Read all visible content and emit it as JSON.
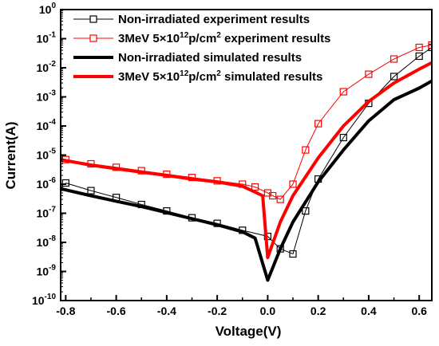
{
  "chart_data": {
    "type": "line",
    "xlabel": "Voltage(V)",
    "ylabel": "Current(A)",
    "xlim": [
      -0.82,
      0.65
    ],
    "ylim_log10": [
      -10,
      0
    ],
    "y_scale": "log",
    "grid": false,
    "x_ticks": [
      -0.8,
      -0.6,
      -0.4,
      -0.2,
      0.0,
      0.2,
      0.4,
      0.6
    ],
    "x_tick_labels": [
      "-0.8",
      "-0.6",
      "-0.4",
      "-0.2",
      "0.0",
      "0.2",
      "0.4",
      "0.6"
    ],
    "y_tick_exponents": [
      -10,
      -9,
      -8,
      -7,
      -6,
      -5,
      -4,
      -3,
      -2,
      -1,
      0
    ],
    "legend_position": "top-right",
    "series": [
      {
        "name": "Non-irradiated experiment results",
        "legend_parts": [
          "Non-irradiated experiment results"
        ],
        "color": "#000000",
        "style": "open-square-markers",
        "x": [
          -0.8,
          -0.7,
          -0.6,
          -0.5,
          -0.4,
          -0.3,
          -0.2,
          -0.1,
          0.0,
          0.05,
          0.1,
          0.15,
          0.2,
          0.3,
          0.4,
          0.5,
          0.6,
          0.65
        ],
        "y": [
          1.1e-06,
          6e-07,
          3.5e-07,
          2e-07,
          1.2e-07,
          7e-08,
          4.5e-08,
          2.6e-08,
          1.6e-08,
          6e-09,
          4e-09,
          1.2e-07,
          1.5e-06,
          4e-05,
          0.0006,
          0.005,
          0.025,
          0.05
        ]
      },
      {
        "name": "3MeV 5×10¹²p/cm² experiment results",
        "legend_parts": [
          "3MeV 5×10",
          "12",
          "p/cm",
          "2",
          " experiment results"
        ],
        "color": "#ff0000",
        "style": "open-square-markers",
        "x": [
          -0.8,
          -0.7,
          -0.6,
          -0.5,
          -0.4,
          -0.3,
          -0.2,
          -0.1,
          -0.05,
          0.0,
          0.02,
          0.05,
          0.1,
          0.15,
          0.2,
          0.3,
          0.4,
          0.5,
          0.6,
          0.65
        ],
        "y": [
          7e-06,
          5e-06,
          3.8e-06,
          2.9e-06,
          2.2e-06,
          1.7e-06,
          1.3e-06,
          1e-06,
          8e-07,
          5e-07,
          4e-07,
          3e-07,
          1e-06,
          1.5e-05,
          0.00012,
          0.0015,
          0.006,
          0.02,
          0.05,
          0.06
        ]
      },
      {
        "name": "Non-irradiated simulated results",
        "legend_parts": [
          "Non-irradiated simulated results"
        ],
        "color": "#000000",
        "style": "line",
        "x": [
          -0.82,
          -0.7,
          -0.6,
          -0.5,
          -0.4,
          -0.3,
          -0.2,
          -0.1,
          -0.05,
          0.0,
          0.05,
          0.1,
          0.2,
          0.3,
          0.4,
          0.5,
          0.6,
          0.65
        ],
        "y": [
          7e-07,
          4e-07,
          2.6e-07,
          1.7e-07,
          1.05e-07,
          6.5e-08,
          4e-08,
          2.3e-08,
          1.4e-08,
          5e-10,
          6e-09,
          5e-08,
          1.2e-06,
          1.5e-05,
          0.00015,
          0.0008,
          0.002,
          0.0035
        ]
      },
      {
        "name": "3MeV 5×10¹²p/cm² simulated results",
        "legend_parts": [
          "3MeV 5×10",
          "12",
          "p/cm",
          "2",
          " simulated results"
        ],
        "color": "#ff0000",
        "style": "line",
        "x": [
          -0.82,
          -0.7,
          -0.6,
          -0.5,
          -0.4,
          -0.3,
          -0.2,
          -0.1,
          -0.02,
          0.0,
          0.05,
          0.1,
          0.2,
          0.3,
          0.4,
          0.5,
          0.6,
          0.65
        ],
        "y": [
          7e-06,
          4.5e-06,
          3.4e-06,
          2.6e-06,
          2e-06,
          1.5e-06,
          1.2e-06,
          8.5e-07,
          4e-07,
          3e-09,
          5e-08,
          4e-07,
          8e-06,
          0.0001,
          0.0007,
          0.003,
          0.009,
          0.015
        ]
      }
    ]
  }
}
